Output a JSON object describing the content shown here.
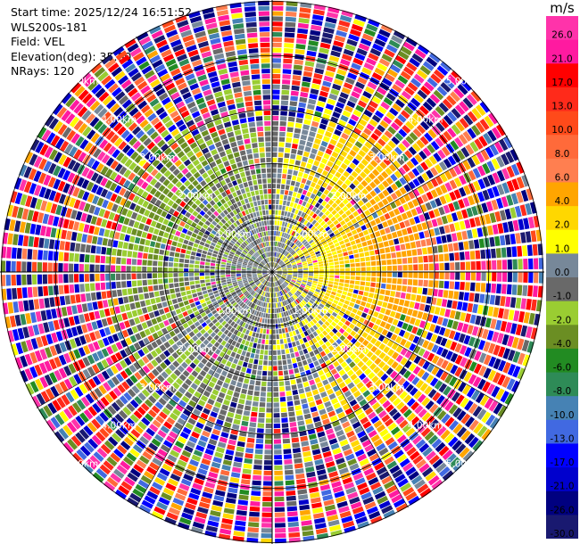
{
  "header": {
    "start_time": "Start time: 2025/12/24 16:51:52",
    "instrument": "WLS200s-181",
    "field": "Field: VEL",
    "elevation": "Elevation(deg): 35.00",
    "nrays": "NRays: 120"
  },
  "colorbar": {
    "unit": "m/s",
    "entries": [
      {
        "label": "26.0",
        "color": "#ff33aa"
      },
      {
        "label": "21.0",
        "color": "#ff1aa0"
      },
      {
        "label": "17.0",
        "color": "#ff0000"
      },
      {
        "label": "13.0",
        "color": "#ff2a1a"
      },
      {
        "label": "10.0",
        "color": "#ff4a1a"
      },
      {
        "label": "8.0",
        "color": "#ff6a3a"
      },
      {
        "label": "6.0",
        "color": "#ff7f50"
      },
      {
        "label": "4.0",
        "color": "#ffa500"
      },
      {
        "label": "2.0",
        "color": "#ffd700"
      },
      {
        "label": "1.0",
        "color": "#ffff00"
      },
      {
        "label": "0.0",
        "color": "#778899"
      },
      {
        "label": "-1.0",
        "color": "#696969"
      },
      {
        "label": "-2.0",
        "color": "#9acd32"
      },
      {
        "label": "-4.0",
        "color": "#6b8e23"
      },
      {
        "label": "-6.0",
        "color": "#228b22"
      },
      {
        "label": "-8.0",
        "color": "#2e8b57"
      },
      {
        "label": "-10.0",
        "color": "#4682b4"
      },
      {
        "label": "-13.0",
        "color": "#4169e1"
      },
      {
        "label": "-17.0",
        "color": "#0000ff"
      },
      {
        "label": "-21.0",
        "color": "#0000cd"
      },
      {
        "label": "-26.0",
        "color": "#000080"
      },
      {
        "label": "-30.0",
        "color": "#191970"
      }
    ]
  },
  "chart_data": {
    "type": "heatmap",
    "projection": "polar-ppi",
    "n_rays": 120,
    "range_rings_km": [
      1.0,
      2.0,
      3.0,
      4.0,
      5.0
    ],
    "ring_labels": [
      "1.00km",
      "2.00km",
      "3.00km",
      "4.00km",
      "5.00km"
    ],
    "max_range_km": 5.0,
    "unit": "m/s",
    "color_bounds": [
      -30,
      -26,
      -21,
      -17,
      -13,
      -10,
      -8,
      -6,
      -4,
      -2,
      -1,
      0,
      1,
      2,
      4,
      6,
      8,
      10,
      13,
      17,
      21,
      26,
      30
    ],
    "velocity_pattern": {
      "positive_sector": "east/north-east (up to ~4-6 m/s)",
      "negative_sector": "west/south-west (down to ~-6 to -10 m/s)",
      "outer_ranges": "noisy, full colour range"
    }
  }
}
